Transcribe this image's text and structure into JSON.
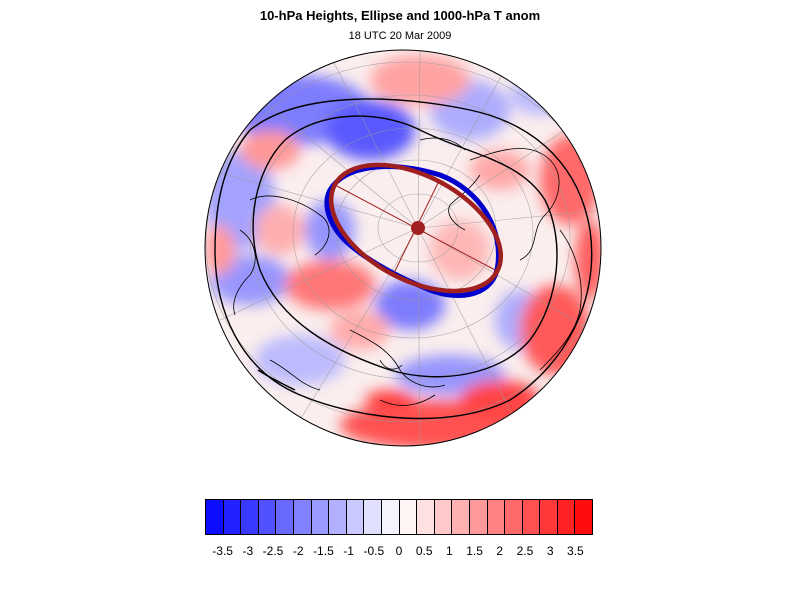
{
  "header": {
    "title": "10-hPa Heights, Ellipse and 1000-hPa T anom",
    "subtitle": "18 UTC 20 Mar 2009"
  },
  "colorbar": {
    "colors": [
      "#0d0dff",
      "#2222ff",
      "#3939ff",
      "#5151ff",
      "#6969ff",
      "#8181ff",
      "#9999ff",
      "#b1b1ff",
      "#c9c9ff",
      "#e1e1ff",
      "#f4f4ff",
      "#fff4f4",
      "#ffe1e1",
      "#ffc9c9",
      "#ffb1b1",
      "#ff9999",
      "#ff8181",
      "#ff6969",
      "#ff5151",
      "#ff3939",
      "#ff2222",
      "#ff0d0d"
    ],
    "labels": [
      "-3.5",
      "-3",
      "-2.5",
      "-2",
      "-1.5",
      "-1",
      "-0.5",
      "0",
      "0.5",
      "1",
      "1.5",
      "2",
      "2.5",
      "3",
      "3.5"
    ]
  },
  "legend_colors": {
    "ellipse_fit": "#a02020",
    "height_contour": "#0000cc",
    "center_marker": "#a02020",
    "coastlines": "#000000"
  }
}
